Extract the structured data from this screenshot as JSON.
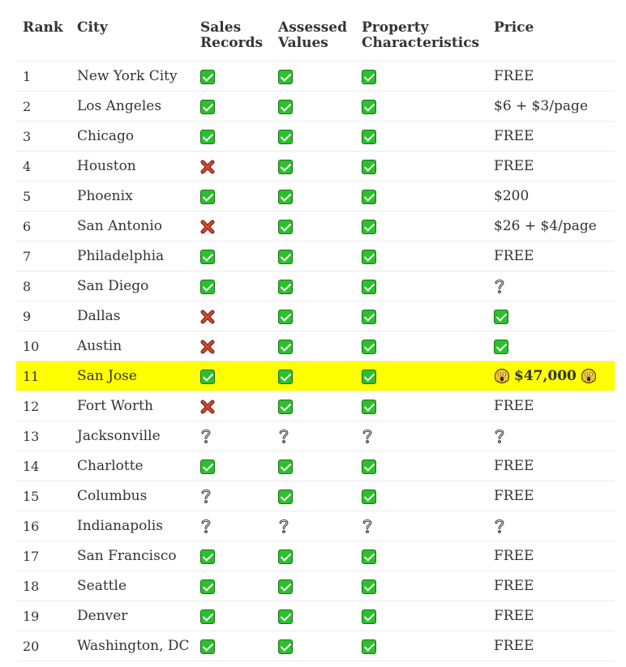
{
  "headers": {
    "rank": "Rank",
    "city": "City",
    "sales_line1": "Sales",
    "sales_line2": "Records",
    "assessed_line1": "Assessed",
    "assessed_line2": "Values",
    "property_line1": "Property",
    "property_line2": "Characteristics",
    "price": "Price"
  },
  "icons": {
    "yes": "check-icon",
    "no": "cross-icon",
    "unknown": "question-icon",
    "shock": "screaming-face-icon"
  },
  "colors": {
    "highlight": "#ffff00",
    "check_green": "#2bc12b",
    "cross_red": "#c0392b"
  },
  "rows": [
    {
      "rank": "1",
      "city": "New York City",
      "sales": "yes",
      "assessed": "yes",
      "property": "yes",
      "price": "FREE"
    },
    {
      "rank": "2",
      "city": "Los Angeles",
      "sales": "yes",
      "assessed": "yes",
      "property": "yes",
      "price": "$6 + $3/page"
    },
    {
      "rank": "3",
      "city": "Chicago",
      "sales": "yes",
      "assessed": "yes",
      "property": "yes",
      "price": "FREE"
    },
    {
      "rank": "4",
      "city": "Houston",
      "sales": "no",
      "assessed": "yes",
      "property": "yes",
      "price": "FREE"
    },
    {
      "rank": "5",
      "city": "Phoenix",
      "sales": "yes",
      "assessed": "yes",
      "property": "yes",
      "price": "$200"
    },
    {
      "rank": "6",
      "city": "San Antonio",
      "sales": "no",
      "assessed": "yes",
      "property": "yes",
      "price": "$26 + $4/page"
    },
    {
      "rank": "7",
      "city": "Philadelphia",
      "sales": "yes",
      "assessed": "yes",
      "property": "yes",
      "price": "FREE"
    },
    {
      "rank": "8",
      "city": "San Diego",
      "sales": "yes",
      "assessed": "yes",
      "property": "yes",
      "price": "",
      "price_icon": "unknown"
    },
    {
      "rank": "9",
      "city": "Dallas",
      "sales": "no",
      "assessed": "yes",
      "property": "yes",
      "price": "",
      "price_icon": "yes"
    },
    {
      "rank": "10",
      "city": "Austin",
      "sales": "no",
      "assessed": "yes",
      "property": "yes",
      "price": "",
      "price_icon": "yes"
    },
    {
      "rank": "11",
      "city": "San Jose",
      "sales": "yes",
      "assessed": "yes",
      "property": "yes",
      "price": "$47,000",
      "highlight": true,
      "price_bold": true,
      "price_emoji": "shock"
    },
    {
      "rank": "12",
      "city": "Fort Worth",
      "sales": "no",
      "assessed": "yes",
      "property": "yes",
      "price": "FREE"
    },
    {
      "rank": "13",
      "city": "Jacksonville",
      "sales": "unknown",
      "assessed": "unknown",
      "property": "unknown",
      "price": "",
      "price_icon": "unknown"
    },
    {
      "rank": "14",
      "city": "Charlotte",
      "sales": "yes",
      "assessed": "yes",
      "property": "yes",
      "price": "FREE"
    },
    {
      "rank": "15",
      "city": "Columbus",
      "sales": "unknown",
      "assessed": "yes",
      "property": "yes",
      "price": "FREE"
    },
    {
      "rank": "16",
      "city": "Indianapolis",
      "sales": "unknown",
      "assessed": "unknown",
      "property": "unknown",
      "price": "",
      "price_icon": "unknown"
    },
    {
      "rank": "17",
      "city": "San Francisco",
      "sales": "yes",
      "assessed": "yes",
      "property": "yes",
      "price": "FREE"
    },
    {
      "rank": "18",
      "city": "Seattle",
      "sales": "yes",
      "assessed": "yes",
      "property": "yes",
      "price": "FREE"
    },
    {
      "rank": "19",
      "city": "Denver",
      "sales": "yes",
      "assessed": "yes",
      "property": "yes",
      "price": "FREE"
    },
    {
      "rank": "20",
      "city": "Washington, DC",
      "sales": "yes",
      "assessed": "yes",
      "property": "yes",
      "price": "FREE"
    }
  ]
}
